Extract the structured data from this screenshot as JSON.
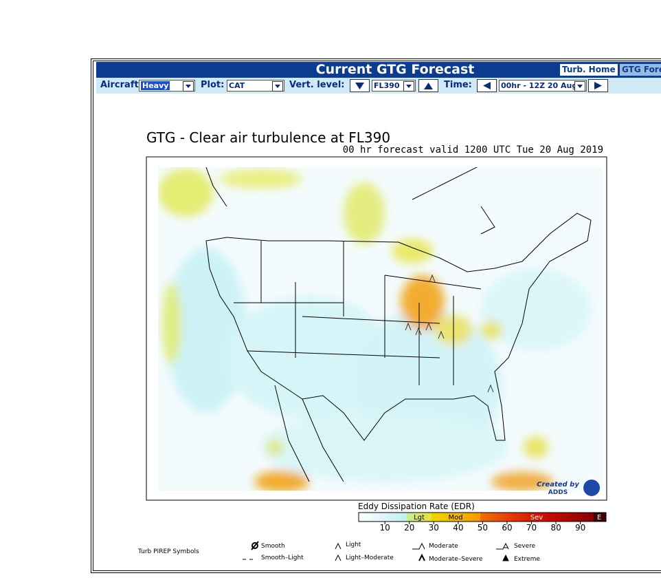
{
  "header": {
    "title": "Current GTG Forecast",
    "buttons": [
      "Turb. Home",
      "GTG Fore"
    ]
  },
  "controls": {
    "aircraft_label": "Aircraft:",
    "aircraft": "Heavy",
    "plot_label": "Plot:",
    "plot": "CAT",
    "level_label": "Vert. level:",
    "level": "FL390",
    "time_label": "Time:",
    "time": "00hr - 12Z 20 Aug"
  },
  "map": {
    "title": "GTG - Clear air turbulence at FL390",
    "subtitle": "00 hr forecast valid 1200 UTC Tue 20 Aug 2019",
    "logo": [
      "Created by",
      "ADDS"
    ]
  },
  "legend": {
    "title": "Eddy Dissipation Rate (EDR)",
    "categories": [
      "Lgt",
      "Mod",
      "Sev",
      "E"
    ],
    "ticks": [
      10,
      20,
      30,
      40,
      50,
      60,
      70,
      80,
      90
    ]
  },
  "pirep": {
    "title": "Turb PIREP Symbols",
    "symbols": [
      "Smooth",
      "Smooth–Light",
      "Light",
      "Light–Moderate",
      "Moderate",
      "Moderate–Severe",
      "Severe",
      "Extreme"
    ]
  }
}
